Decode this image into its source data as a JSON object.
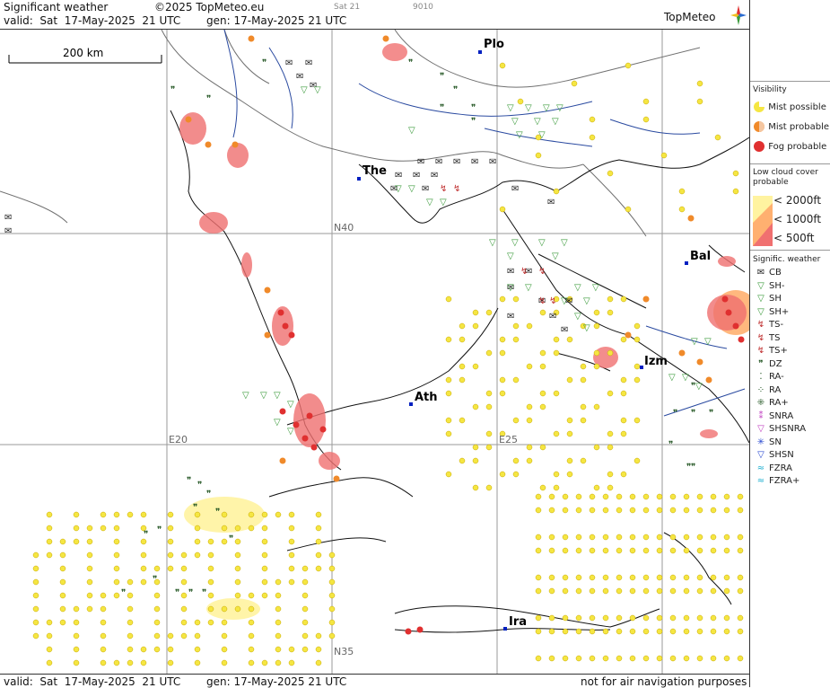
{
  "header": {
    "title": "Significant weather",
    "copyright": "©2025 TopMeteo.eu",
    "valid": "valid:  Sat  17-May-2025  21 UTC",
    "gen": "gen: 17-May-2025 21 UTC",
    "small1": "Sat 21",
    "small2": "9010",
    "logo": "TopMeteo"
  },
  "footer": {
    "valid": "valid:  Sat  17-May-2025  21 UTC",
    "gen": "gen: 17-May-2025 21 UTC",
    "note": "not for air navigation purposes"
  },
  "map": {
    "scale_label": "200 km",
    "cities": [
      {
        "name": "Plo"
      },
      {
        "name": "The"
      },
      {
        "name": "Bal"
      },
      {
        "name": "Izm"
      },
      {
        "name": "Ath"
      },
      {
        "name": "Ira"
      }
    ],
    "grid_labels": [
      "N40",
      "E20",
      "E25",
      "N35"
    ]
  },
  "legend": {
    "visibility": {
      "title": "Visibility",
      "items": [
        "Mist possible",
        "Mist probable",
        "Fog probable"
      ]
    },
    "low_cloud": {
      "title": "Low cloud cover probable",
      "items": [
        "< 2000ft",
        "< 1000ft",
        "<  500ft"
      ]
    },
    "signif": {
      "title": "Signific. weather",
      "items": [
        "CB",
        "SH-",
        "SH",
        "SH+",
        "TS-",
        "TS",
        "TS+",
        "DZ",
        "RA-",
        "RA",
        "RA+",
        "SNRA",
        "SHSNRA",
        "SN",
        "SHSN",
        "FZRA",
        "FZRA+"
      ]
    }
  },
  "colors": {
    "mist_possible": "#f5e642",
    "mist_probable": "#f08a2a",
    "fog_probable": "#e03030",
    "cloud_2000": "#fff3a0",
    "cloud_1000": "#ffb070",
    "cloud_500": "#f07070"
  }
}
